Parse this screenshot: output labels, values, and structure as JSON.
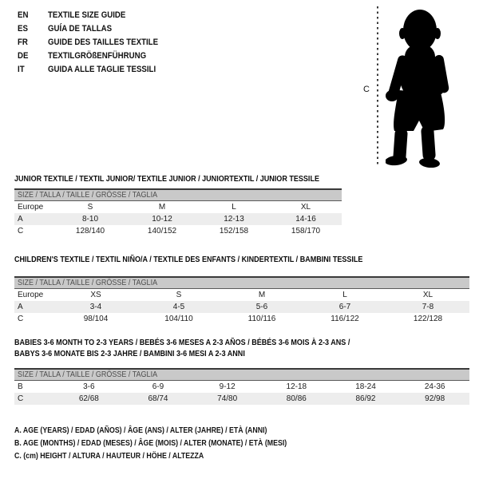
{
  "header": {
    "languages": [
      {
        "code": "EN",
        "title": "TEXTILE SIZE GUIDE"
      },
      {
        "code": "ES",
        "title": "GUÍA DE TALLAS"
      },
      {
        "code": "FR",
        "title": "GUIDE DES TAILLES TEXTILE"
      },
      {
        "code": "DE",
        "title": "TEXTILGRÖßENFÜHRUNG"
      },
      {
        "code": "IT",
        "title": "GUIDA ALLE TAGLIE TESSILI"
      }
    ]
  },
  "figure": {
    "image": "toddler-silhouette",
    "measure_label": "C"
  },
  "tables": [
    {
      "title": "JUNIOR TEXTILE / TEXTIL JUNIOR/ TEXTILE JUNIOR / JUNIORTEXTIL / JUNIOR TESSILE",
      "size_header": "SIZE / TALLA / TAILLE / GRÖSSE / TAGLIA",
      "rows": [
        {
          "label": "Europe",
          "values": [
            "S",
            "M",
            "L",
            "XL"
          ]
        },
        {
          "label": "A",
          "values": [
            "8-10",
            "10-12",
            "12-13",
            "14-16"
          ]
        },
        {
          "label": "C",
          "values": [
            "128/140",
            "140/152",
            "152/158",
            "158/170"
          ]
        }
      ]
    },
    {
      "title": "CHILDREN'S TEXTILE / TEXTIL NIÑO/A / TEXTILE DES ENFANTS / KINDERTEXTIL / BAMBINI TESSILE",
      "size_header": "SIZE / TALLA / TAILLE / GRÖSSE / TAGLIA",
      "rows": [
        {
          "label": "Europe",
          "values": [
            "XS",
            "S",
            "M",
            "L",
            "XL"
          ]
        },
        {
          "label": "A",
          "values": [
            "3-4",
            "4-5",
            "5-6",
            "6-7",
            "7-8"
          ]
        },
        {
          "label": "C",
          "values": [
            "98/104",
            "104/110",
            "110/116",
            "116/122",
            "122/128"
          ]
        }
      ]
    },
    {
      "title": "BABIES 3-6 MONTH TO 2-3 YEARS / BEBÉS 3-6 MESES A 2-3 AÑOS / BÉBÉS 3-6 MOIS À 2-3 ANS /",
      "title2": "BABYS 3-6 MONATE BIS 2-3 JAHRE / BAMBINI 3-6 MESI A 2-3 ANNI",
      "size_header": "SIZE / TALLA / TAILLE / GRÖSSE / TAGLIA",
      "rows": [
        {
          "label": "B",
          "values": [
            "3-6",
            "6-9",
            "9-12",
            "12-18",
            "18-24",
            "24-36"
          ]
        },
        {
          "label": "C",
          "values": [
            "62/68",
            "68/74",
            "74/80",
            "80/86",
            "86/92",
            "92/98"
          ]
        }
      ]
    }
  ],
  "legend": [
    "A. AGE (YEARS) / EDAD (AÑOS) / ÂGE (ANS) / ALTER (JAHRE) / ETÀ (ANNI)",
    "B. AGE (MONTHS) / EDAD (MESES) / ÂGE (MOIS) / ALTER (MONATE) / ETÀ (MESI)",
    "C. (cm) HEIGHT / ALTURA / HAUTEUR / HÖHE / ALTEZZA"
  ],
  "colors": {
    "bar-gray": "#c9c9c9",
    "stripe-gray": "#ededed",
    "rule-dark": "#3a3a3a",
    "bar-text": "#4f4f4f"
  }
}
